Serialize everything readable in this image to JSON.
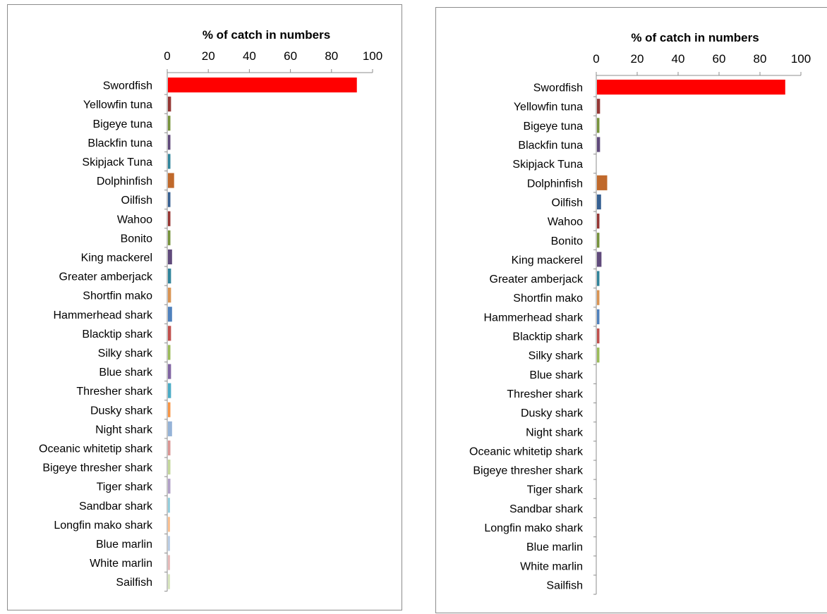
{
  "chart_data": [
    {
      "type": "bar",
      "orientation": "horizontal",
      "title": "% of catch  in numbers",
      "xlim": [
        0,
        100
      ],
      "x_ticks": [
        "0",
        "20",
        "40",
        "60",
        "80",
        "100"
      ],
      "grid": false,
      "categories": [
        "Swordfish",
        "Yellowfin tuna",
        "Bigeye tuna",
        "Blackfin tuna",
        "Skipjack Tuna",
        "Dolphinfish",
        "Oilfish",
        "Wahoo",
        "Bonito",
        "King mackerel",
        "Greater amberjack",
        "Shortfin mako",
        "Hammerhead shark",
        "Blacktip shark",
        "Silky shark",
        "Blue shark",
        "Thresher shark",
        "Dusky shark",
        "Night shark",
        "Oceanic whitetip shark",
        "Bigeye thresher shark",
        "Tiger shark",
        "Sandbar shark",
        "Longfin mako  shark",
        "Blue marlin",
        "White marlin",
        "Sailfish"
      ],
      "values": [
        92,
        1.5,
        1.2,
        1.2,
        1.2,
        3,
        1.2,
        1.2,
        1.2,
        2,
        1.5,
        1.5,
        2,
        1.5,
        1.2,
        1.5,
        1.5,
        1.2,
        2,
        1.2,
        1.2,
        1.2,
        1,
        1,
        1,
        1,
        1
      ],
      "colors": [
        "#ff0000",
        "#953735",
        "#77933c",
        "#5f497a",
        "#31859c",
        "#c0692b",
        "#366092",
        "#963634",
        "#76923c",
        "#604a7b",
        "#31849b",
        "#d99453",
        "#4f81bd",
        "#c0504d",
        "#9bbb59",
        "#8064a2",
        "#4bacc6",
        "#f79646",
        "#95b3d7",
        "#da9694",
        "#c4d79b",
        "#b1a0c7",
        "#92cddc",
        "#fabf8f",
        "#b8cce4",
        "#e6b9b8",
        "#d7e4bd"
      ]
    },
    {
      "type": "bar",
      "orientation": "horizontal",
      "title": "% of catch  in numbers",
      "xlim": [
        0,
        100
      ],
      "x_ticks": [
        "0",
        "20",
        "40",
        "60",
        "80",
        "100"
      ],
      "grid": false,
      "categories": [
        "Swordfish",
        "Yellowfin tuna",
        "Bigeye tuna",
        "Blackfin tuna",
        "Skipjack Tuna",
        "Dolphinfish",
        "Oilfish",
        "Wahoo",
        "Bonito",
        "King mackerel",
        "Greater amberjack",
        "Shortfin mako",
        "Hammerhead shark",
        "Blacktip shark",
        "Silky shark",
        "Blue shark",
        "Thresher shark",
        "Dusky shark",
        "Night shark",
        "Oceanic whitetip shark",
        "Bigeye thresher shark",
        "Tiger shark",
        "Sandbar shark",
        "Longfin mako  shark",
        "Blue marlin",
        "White marlin",
        "Sailfish"
      ],
      "values": [
        92,
        1.5,
        1.2,
        1.5,
        0,
        5,
        2,
        1.2,
        1.2,
        2.2,
        1.2,
        1.2,
        1.2,
        1.2,
        1.2,
        0,
        0,
        0,
        0,
        0,
        0,
        0,
        0,
        0,
        0,
        0,
        0
      ],
      "colors": [
        "#ff0000",
        "#953735",
        "#77933c",
        "#5f497a",
        "#31859c",
        "#c0692b",
        "#366092",
        "#963634",
        "#76923c",
        "#604a7b",
        "#31849b",
        "#d99453",
        "#4f81bd",
        "#c0504d",
        "#9bbb59",
        "#8064a2",
        "#4bacc6",
        "#f79646",
        "#95b3d7",
        "#da9694",
        "#c4d79b",
        "#b1a0c7",
        "#92cddc",
        "#fabf8f",
        "#b8cce4",
        "#e6b9b8",
        "#d7e4bd"
      ]
    }
  ]
}
